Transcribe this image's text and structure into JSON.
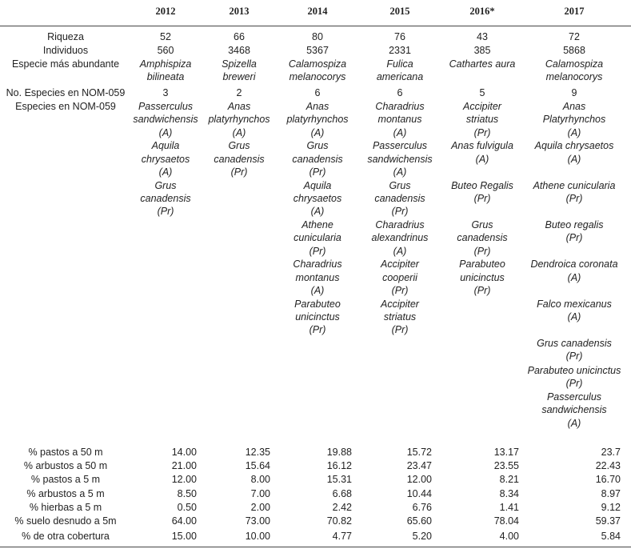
{
  "table": {
    "columns": [
      "2012",
      "2013",
      "2014",
      "2015",
      "2016*",
      "2017"
    ],
    "rows": [
      {
        "label": "Riqueza",
        "cells": [
          "52",
          "66",
          "80",
          "76",
          "43",
          "72"
        ]
      },
      {
        "label": "Individuos",
        "cells": [
          "560",
          "3468",
          "5367",
          "2331",
          "385",
          "5868"
        ]
      },
      {
        "label": "Especie más abundante",
        "cells": [
          [
            "Amphispiza",
            "bilineata"
          ],
          [
            "Spizella",
            "breweri"
          ],
          [
            "Calamospiza",
            "melanocorys"
          ],
          [
            "Fulica",
            "americana"
          ],
          [
            "Cathartes aura"
          ],
          [
            "Calamospiza",
            "melanocorys"
          ]
        ]
      },
      {
        "label": "No. Especies en NOM-059",
        "cells": [
          "3",
          "2",
          "6",
          "6",
          "5",
          "9"
        ]
      }
    ],
    "species_row": {
      "label": "Especies en NOM-059",
      "cells": [
        [
          [
            "Passerculus",
            "sandwichensis",
            "(A)"
          ],
          [
            "Aquila",
            "chrysaetos",
            "(A)"
          ],
          [
            "Grus",
            "canadensis",
            "(Pr)"
          ]
        ],
        [
          [
            "Anas",
            "platyrhynchos",
            "(A)"
          ],
          [
            "Grus",
            "canadensis",
            "(Pr)"
          ]
        ],
        [
          [
            "Anas",
            "platyrhynchos",
            "(A)"
          ],
          [
            "Grus",
            "canadensis",
            "(Pr)"
          ],
          [
            "Aquila",
            "chrysaetos",
            "(A)"
          ],
          [
            "Athene",
            "cunicularia",
            "(Pr)"
          ],
          [
            "Charadrius",
            "montanus",
            "(A)"
          ],
          [
            "Parabuteo",
            "unicinctus",
            "(Pr)"
          ]
        ],
        [
          [
            "Charadrius",
            "montanus",
            "(A)"
          ],
          [
            "Passerculus",
            "sandwichensis",
            "(A)"
          ],
          [
            "Grus",
            "canadensis",
            "(Pr)"
          ],
          [
            "Charadrius",
            "alexandrinus",
            "(A)"
          ],
          [
            "Accipiter",
            "cooperii",
            "(Pr)"
          ],
          [
            "Accipiter",
            "striatus",
            "(Pr)"
          ]
        ],
        [
          [
            "Accipiter",
            "striatus",
            "(Pr)"
          ],
          [
            "Anas fulvigula",
            "(A)"
          ],
          [
            "Buteo Regalis",
            "(Pr)"
          ],
          [
            "Grus",
            "canadensis",
            "(Pr)"
          ],
          [
            "Parabuteo",
            "unicinctus",
            "(Pr)"
          ]
        ],
        [
          [
            "Anas",
            "Platyrhynchos",
            "(A)"
          ],
          [
            "Aquila chrysaetos",
            "(A)"
          ],
          [
            "Athene cunicularia",
            "(Pr)"
          ],
          [
            "Buteo regalis",
            "(Pr)"
          ],
          [
            "Dendroica coronata",
            "(A)"
          ],
          [
            "Falco mexicanus",
            "(A)"
          ],
          [
            "Grus canadensis",
            "(Pr)"
          ],
          [
            "Parabuteo unicinctus",
            "(Pr)"
          ],
          [
            "Passerculus",
            "sandwichensis",
            "(A)"
          ]
        ]
      ]
    },
    "cover_rows": [
      {
        "label": "% pastos a 50 m",
        "cells": [
          "14.00",
          "12.35",
          "19.88",
          "15.72",
          "13.17",
          "23.7"
        ]
      },
      {
        "label": "% arbustos a 50 m",
        "cells": [
          "21.00",
          "15.64",
          "16.12",
          "23.47",
          "23.55",
          "22.43"
        ]
      },
      {
        "label": "% pastos a 5 m",
        "cells": [
          "12.00",
          "8.00",
          "15.31",
          "12.00",
          "8.21",
          "16.70"
        ]
      },
      {
        "label": "% arbustos a 5 m",
        "cells": [
          "8.50",
          "7.00",
          "6.68",
          "10.44",
          "8.34",
          "8.97"
        ]
      },
      {
        "label": "% hierbas a 5 m",
        "cells": [
          "0.50",
          "2.00",
          "2.42",
          "6.76",
          "1.41",
          "9.12"
        ]
      },
      {
        "label": "% suelo desnudo a 5m",
        "cells": [
          "64.00",
          "73.00",
          "70.82",
          "65.60",
          "78.04",
          "59.37"
        ]
      },
      {
        "label": "% de otra cobertura",
        "cells": [
          "15.00",
          "10.00",
          "4.77",
          "5.20",
          "4.00",
          "5.84"
        ]
      }
    ]
  }
}
